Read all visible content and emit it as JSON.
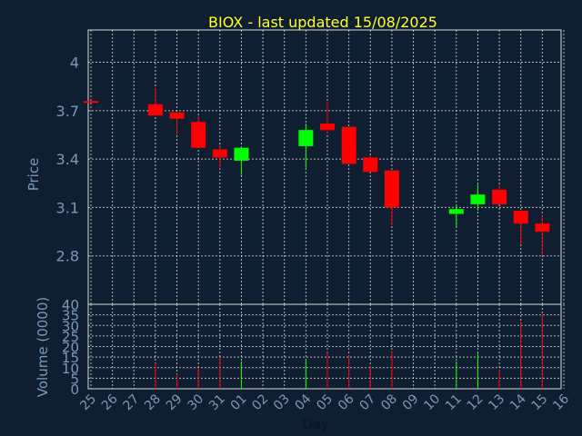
{
  "chart_data": {
    "type": "candlestick",
    "title": "BIOX - last updated 15/08/2025",
    "xlabel": "Day",
    "ylabel": "Price",
    "volume_label": "Volume (0000)",
    "price_ticks": [
      "4",
      "3.7",
      "3.4",
      "3.1",
      "2.8"
    ],
    "price_tick_values": [
      4.0,
      3.7,
      3.4,
      3.1,
      2.8
    ],
    "price_ylim": [
      2.5,
      4.2
    ],
    "volume_ticks": [
      "40",
      "35",
      "30",
      "25",
      "20",
      "15",
      "10",
      "5",
      "0"
    ],
    "volume_tick_values": [
      40,
      35,
      30,
      25,
      20,
      15,
      10,
      5,
      0
    ],
    "volume_ylim": [
      0,
      40
    ],
    "categories": [
      "25",
      "26",
      "27",
      "28",
      "29",
      "30",
      "31",
      "01",
      "02",
      "03",
      "04",
      "05",
      "06",
      "07",
      "08",
      "09",
      "10",
      "11",
      "12",
      "13",
      "14",
      "15",
      "16"
    ],
    "colors": {
      "up": "#00ff00",
      "down": "#ff0000",
      "title": "#ffff33",
      "axis_text": "#7c97b7",
      "background": "#0f1f31"
    },
    "candles": [
      {
        "day": "25",
        "open": 3.76,
        "high": 3.76,
        "low": 3.75,
        "close": 3.75,
        "volume": 0
      },
      {
        "day": "28",
        "open": 3.74,
        "high": 3.84,
        "low": 3.67,
        "close": 3.67,
        "volume": 12
      },
      {
        "day": "29",
        "open": 3.69,
        "high": 3.69,
        "low": 3.55,
        "close": 3.65,
        "volume": 7
      },
      {
        "day": "30",
        "open": 3.63,
        "high": 3.67,
        "low": 3.47,
        "close": 3.47,
        "volume": 10
      },
      {
        "day": "31",
        "open": 3.46,
        "high": 3.49,
        "low": 3.34,
        "close": 3.41,
        "volume": 15
      },
      {
        "day": "01",
        "open": 3.39,
        "high": 3.47,
        "low": 3.3,
        "close": 3.47,
        "volume": 13
      },
      {
        "day": "04",
        "open": 3.48,
        "high": 3.62,
        "low": 3.34,
        "close": 3.58,
        "volume": 14
      },
      {
        "day": "05",
        "open": 3.62,
        "high": 3.75,
        "low": 3.56,
        "close": 3.58,
        "volume": 17
      },
      {
        "day": "06",
        "open": 3.6,
        "high": 3.6,
        "low": 3.37,
        "close": 3.37,
        "volume": 16
      },
      {
        "day": "07",
        "open": 3.41,
        "high": 3.42,
        "low": 3.32,
        "close": 3.32,
        "volume": 11
      },
      {
        "day": "08",
        "open": 3.33,
        "high": 3.33,
        "low": 2.99,
        "close": 3.1,
        "volume": 18
      },
      {
        "day": "11",
        "open": 3.06,
        "high": 3.12,
        "low": 2.98,
        "close": 3.09,
        "volume": 13
      },
      {
        "day": "12",
        "open": 3.12,
        "high": 3.25,
        "low": 3.08,
        "close": 3.18,
        "volume": 17
      },
      {
        "day": "13",
        "open": 3.21,
        "high": 3.24,
        "low": 3.12,
        "close": 3.12,
        "volume": 9
      },
      {
        "day": "14",
        "open": 3.08,
        "high": 3.08,
        "low": 2.87,
        "close": 3.0,
        "volume": 32
      },
      {
        "day": "15",
        "open": 3.0,
        "high": 3.05,
        "low": 2.8,
        "close": 2.95,
        "volume": 35
      }
    ]
  }
}
